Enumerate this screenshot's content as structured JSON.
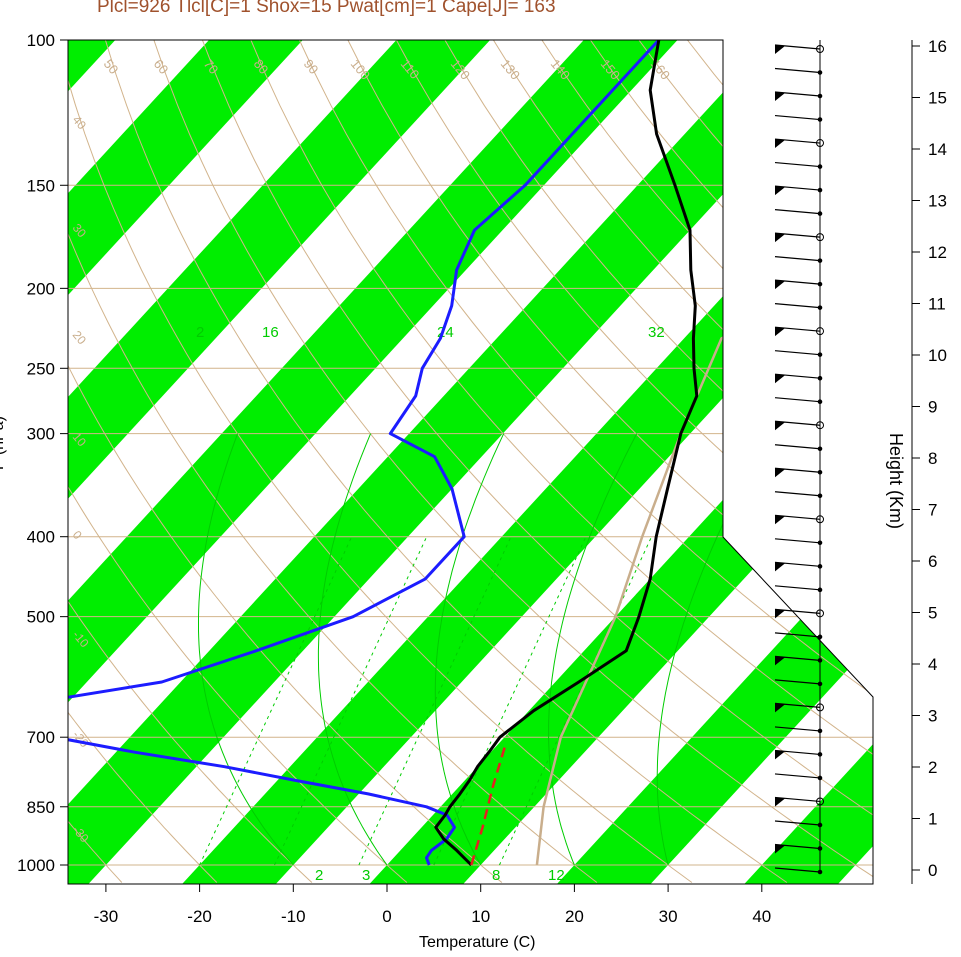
{
  "title": "Plcl=926 Tlcl[C]=1 Shox=15 Pwat[cm]=1 Cape[J]= 163",
  "chart_data": {
    "type": "skew-t",
    "title": "Plcl=926 Tlcl[C]=1 Shox=15 Pwat[cm]=1 Cape[J]= 163",
    "xlabel": "Temperature (C)",
    "ylabel": "P (hPa)",
    "y2label": "Height (Km)",
    "xlim": [
      -35,
      52
    ],
    "ylim": [
      1050,
      100
    ],
    "x_ticks": [
      "-30",
      "-20",
      "-10",
      "0",
      "10",
      "20",
      "30",
      "40"
    ],
    "pressure_ticks": [
      "100",
      "150",
      "200",
      "250",
      "300",
      "400",
      "500",
      "700",
      "850",
      "1000"
    ],
    "height_ticks": [
      "0",
      "1",
      "2",
      "3",
      "4",
      "5",
      "6",
      "7",
      "8",
      "9",
      "10",
      "11",
      "12",
      "13",
      "14",
      "15",
      "16"
    ],
    "band_colors": {
      "fill": "#00ee00",
      "isotherm": "#d2b48c",
      "mixing_ratio": "#00cc00"
    },
    "isotherm_labels": [
      "50",
      "60",
      "70",
      "80",
      "90",
      "100",
      "110",
      "120",
      "130",
      "140",
      "150",
      "160",
      "40",
      "30",
      "20",
      "10",
      "0",
      "-10",
      "-20",
      "-30",
      "30",
      "20",
      "10",
      "0",
      "10",
      "20",
      "30"
    ],
    "mixing_ratio_labels": [
      "2",
      "16",
      "24",
      "32",
      "2",
      "3",
      "8",
      "12"
    ],
    "temperature": {
      "name": "temperature",
      "color": "#000000",
      "p": [
        1000,
        960,
        930,
        900,
        870,
        850,
        820,
        790,
        760,
        730,
        700,
        650,
        600,
        550,
        500,
        450,
        400,
        350,
        300,
        270,
        250,
        230,
        210,
        190,
        170,
        150,
        130,
        115,
        100
      ],
      "t": [
        9,
        6,
        3.5,
        1.5,
        1.3,
        1.0,
        0.8,
        0.5,
        0,
        -0.2,
        -0.5,
        0.5,
        2.5,
        4.5,
        2.5,
        0,
        -3.5,
        -7,
        -11,
        -13,
        -16,
        -19,
        -22,
        -26,
        -30,
        -36,
        -43,
        -48,
        -52
      ]
    },
    "dewpoint": {
      "name": "dewpoint",
      "color": "#1c1cff",
      "p": [
        1000,
        980,
        960,
        930,
        900,
        870,
        850,
        820,
        790,
        760,
        730,
        700,
        650,
        600,
        550,
        500,
        450,
        400,
        350,
        320,
        300,
        270,
        250,
        230,
        210,
        190,
        170,
        150,
        130,
        115,
        100
      ],
      "t": [
        4.5,
        3.5,
        3.3,
        3.8,
        3.5,
        1.5,
        -1.5,
        -9,
        -18,
        -27,
        -38,
        -48,
        -58,
        -42,
        -35,
        -28,
        -24,
        -24,
        -30,
        -35,
        -42,
        -43,
        -45,
        -46,
        -48,
        -51,
        -53,
        -52,
        -52,
        -52,
        -52
      ]
    },
    "parcel": {
      "name": "parcel",
      "color": "#e52020",
      "p": [
        1000,
        900,
        800,
        720
      ],
      "t": [
        9,
        6.5,
        3.5,
        1.0
      ]
    },
    "lifted": {
      "name": "lifted",
      "color": "#c9ae8c",
      "p": [
        1000,
        850,
        700,
        500,
        400,
        300,
        230,
        100
      ],
      "t": [
        16,
        11,
        6,
        0,
        -5,
        -11,
        -16,
        15
      ]
    },
    "wind_barbs": {
      "count": 36
    }
  }
}
